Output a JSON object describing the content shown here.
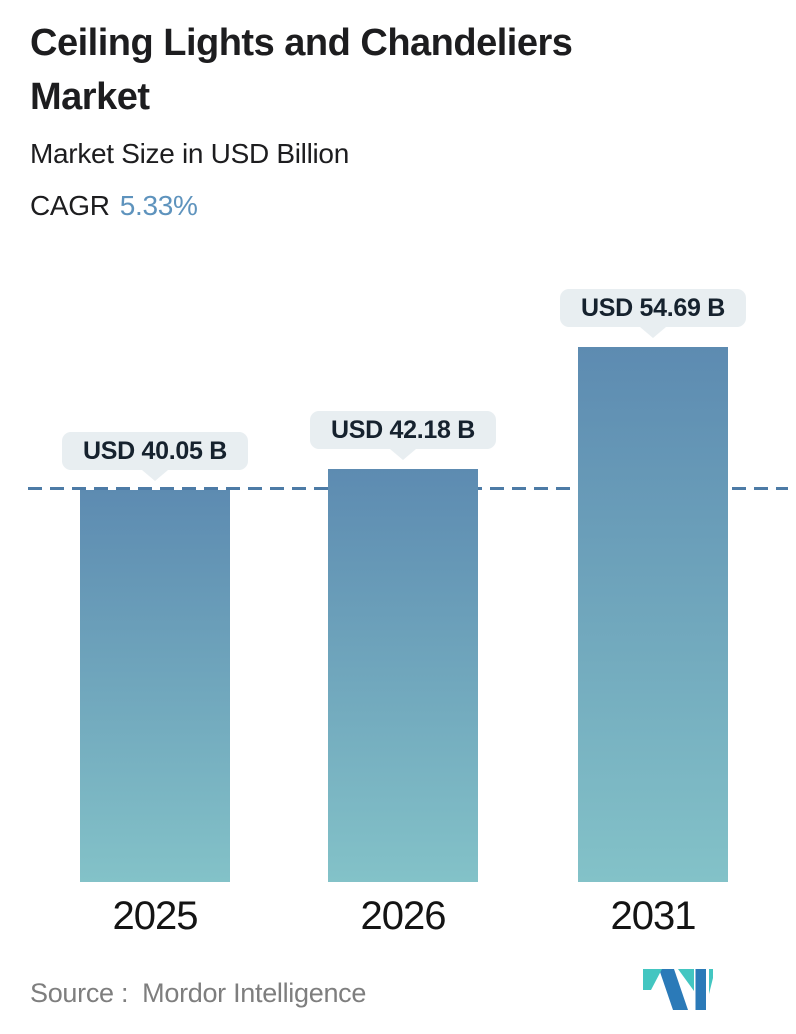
{
  "header": {
    "title": "Ceiling Lights and Chandeliers Market",
    "subtitle": "Market Size in USD Billion",
    "cagr_label": "CAGR",
    "cagr_value": "5.33%"
  },
  "chart_data": {
    "type": "bar",
    "title": "Ceiling Lights and Chandeliers Market",
    "ylabel": "Market Size in USD Billion",
    "cagr_percent": 5.33,
    "categories": [
      "2025",
      "2026",
      "2031"
    ],
    "values": [
      40.05,
      42.18,
      54.69
    ],
    "bar_labels": [
      "USD 40.05 B",
      "USD 42.18 B",
      "USD 54.69 B"
    ],
    "reference_line_value": 40.05,
    "ylim": [
      0,
      64.5
    ],
    "grid": false,
    "legend": false,
    "bar_color_top": "#5d8bb1",
    "bar_color_bottom": "#83c2c8",
    "reference_line_color": "#4d7ba6",
    "callout_bg": "#e8eef1"
  },
  "footer": {
    "source_label": "Source :",
    "source_value": "Mordor Intelligence"
  },
  "colors": {
    "accent_blue": "#5e93bd",
    "text_dark": "#1d1d1f",
    "text_gray": "#7e7e7e",
    "logo_blue": "#2b7ab8",
    "logo_teal": "#43c6c1"
  }
}
